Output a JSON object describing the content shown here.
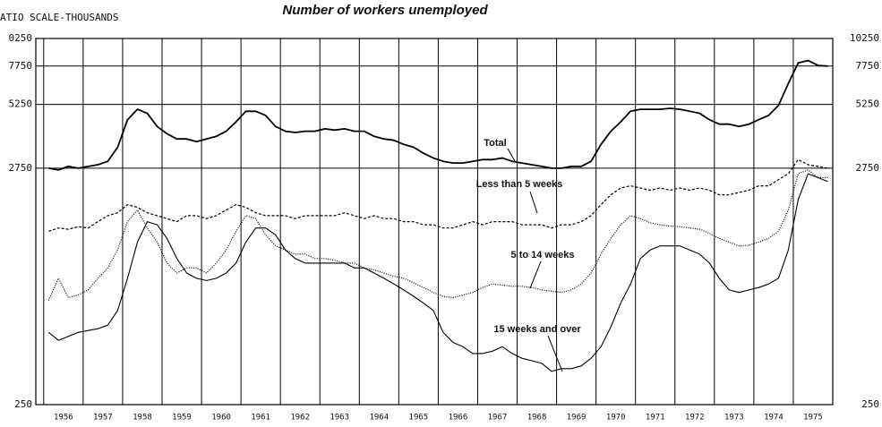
{
  "chart_data": {
    "type": "line",
    "title": "Number of workers unemployed",
    "y_axis_label": "ATIO SCALE-THOUSANDS",
    "log_scale": true,
    "grid": true,
    "categories": [
      "1956",
      "1957",
      "1958",
      "1959",
      "1960",
      "1961",
      "1962",
      "1963",
      "1964",
      "1965",
      "1966",
      "1967",
      "1968",
      "1969",
      "1970",
      "1971",
      "1972",
      "1973",
      "1974",
      "1975"
    ],
    "xlim": [
      1955.8,
      1976
    ],
    "xticks": [
      1956,
      1957,
      1958,
      1959,
      1960,
      1961,
      1962,
      1963,
      1964,
      1965,
      1966,
      1967,
      1968,
      1969,
      1970,
      1971,
      1972,
      1973,
      1974,
      1975
    ],
    "ylim": [
      250,
      10250
    ],
    "yticks": [
      {
        "value": 10250,
        "label": "0250"
      },
      7750,
      5250,
      2750,
      250
    ],
    "y2lim": [
      250,
      10250
    ],
    "y2ticks": [
      10250,
      7750,
      5250,
      2750,
      250
    ],
    "x": [
      1956.125,
      1956.375,
      1956.625,
      1956.875,
      1957.125,
      1957.375,
      1957.625,
      1957.875,
      1958.125,
      1958.375,
      1958.625,
      1958.875,
      1959.125,
      1959.375,
      1959.625,
      1959.875,
      1960.125,
      1960.375,
      1960.625,
      1960.875,
      1961.125,
      1961.375,
      1961.625,
      1961.875,
      1962.125,
      1962.375,
      1962.625,
      1962.875,
      1963.125,
      1963.375,
      1963.625,
      1963.875,
      1964.125,
      1964.375,
      1964.625,
      1964.875,
      1965.125,
      1965.375,
      1965.625,
      1965.875,
      1966.125,
      1966.375,
      1966.625,
      1966.875,
      1967.125,
      1967.375,
      1967.625,
      1967.875,
      1968.125,
      1968.375,
      1968.625,
      1968.875,
      1969.125,
      1969.375,
      1969.625,
      1969.875,
      1970.125,
      1970.375,
      1970.625,
      1970.875,
      1971.125,
      1971.375,
      1971.625,
      1971.875,
      1972.125,
      1972.375,
      1972.625,
      1972.875,
      1973.125,
      1973.375,
      1973.625,
      1973.875,
      1974.125,
      1974.375,
      1974.625,
      1974.875,
      1975.125,
      1975.375,
      1975.625,
      1975.875
    ],
    "series": [
      {
        "name": "Total",
        "color": "#000000",
        "style": "solid",
        "width": 1.8,
        "values": [
          2750,
          2700,
          2800,
          2750,
          2800,
          2850,
          2950,
          3400,
          4500,
          5000,
          4800,
          4200,
          3900,
          3700,
          3700,
          3600,
          3700,
          3800,
          4000,
          4400,
          4900,
          4900,
          4700,
          4200,
          4000,
          3950,
          4000,
          4000,
          4100,
          4050,
          4100,
          4000,
          4000,
          3800,
          3700,
          3650,
          3500,
          3400,
          3200,
          3050,
          2950,
          2900,
          2900,
          2950,
          3000,
          3000,
          3050,
          2950,
          2900,
          2850,
          2800,
          2750,
          2750,
          2800,
          2800,
          2950,
          3500,
          4000,
          4400,
          4900,
          5000,
          5000,
          5000,
          5050,
          5000,
          4900,
          4800,
          4500,
          4300,
          4300,
          4200,
          4300,
          4500,
          4700,
          5200,
          6500,
          8000,
          8200,
          7800,
          7750
        ]
      },
      {
        "name": "Less than 5 weeks",
        "color": "#000000",
        "style": "dashed",
        "width": 1.2,
        "values": [
          1450,
          1500,
          1480,
          1520,
          1500,
          1600,
          1700,
          1750,
          1900,
          1850,
          1750,
          1700,
          1650,
          1600,
          1700,
          1700,
          1650,
          1700,
          1800,
          1900,
          1850,
          1750,
          1700,
          1700,
          1700,
          1650,
          1700,
          1700,
          1700,
          1700,
          1750,
          1700,
          1650,
          1700,
          1650,
          1650,
          1600,
          1600,
          1550,
          1550,
          1500,
          1500,
          1550,
          1600,
          1550,
          1600,
          1600,
          1600,
          1550,
          1550,
          1550,
          1500,
          1550,
          1550,
          1600,
          1700,
          1900,
          2100,
          2250,
          2300,
          2250,
          2200,
          2250,
          2200,
          2250,
          2200,
          2250,
          2200,
          2100,
          2100,
          2150,
          2200,
          2300,
          2300,
          2450,
          2600,
          3000,
          2850,
          2800,
          2750
        ]
      },
      {
        "name": "5 to 14 weeks",
        "color": "#000000",
        "style": "dotted",
        "width": 1.2,
        "values": [
          720,
          900,
          740,
          760,
          800,
          900,
          1000,
          1200,
          1600,
          1800,
          1500,
          1300,
          1050,
          950,
          1000,
          1000,
          950,
          1050,
          1200,
          1450,
          1700,
          1650,
          1400,
          1250,
          1200,
          1150,
          1150,
          1100,
          1100,
          1080,
          1050,
          1050,
          1000,
          980,
          950,
          920,
          900,
          860,
          820,
          780,
          750,
          740,
          760,
          780,
          820,
          850,
          840,
          830,
          830,
          820,
          800,
          790,
          780,
          800,
          850,
          950,
          1150,
          1350,
          1550,
          1700,
          1650,
          1580,
          1550,
          1530,
          1520,
          1500,
          1480,
          1420,
          1350,
          1300,
          1250,
          1260,
          1300,
          1350,
          1450,
          1800,
          2600,
          2700,
          2500,
          2500
        ]
      },
      {
        "name": "15 weeks and over",
        "color": "#000000",
        "style": "solid",
        "width": 1.1,
        "values": [
          520,
          480,
          500,
          520,
          530,
          540,
          560,
          650,
          900,
          1300,
          1600,
          1550,
          1350,
          1100,
          950,
          900,
          880,
          900,
          950,
          1050,
          1300,
          1500,
          1500,
          1400,
          1200,
          1100,
          1050,
          1050,
          1050,
          1050,
          1050,
          1000,
          1000,
          950,
          900,
          850,
          800,
          750,
          700,
          650,
          520,
          470,
          450,
          420,
          420,
          430,
          450,
          420,
          400,
          390,
          380,
          350,
          360,
          360,
          370,
          400,
          450,
          550,
          700,
          850,
          1100,
          1200,
          1250,
          1250,
          1250,
          1200,
          1150,
          1050,
          900,
          800,
          780,
          800,
          820,
          850,
          900,
          1200,
          2000,
          2600,
          2500,
          2400
        ]
      }
    ]
  }
}
